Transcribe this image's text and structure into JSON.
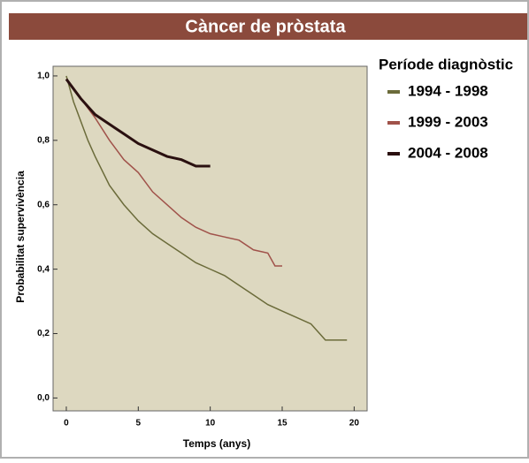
{
  "chart_data": {
    "type": "line",
    "title": "Càncer de pròstata",
    "x_label": "Temps (anys)",
    "y_label": "Probabilitat supervivència",
    "legend_title": "Període diagnòstic",
    "legend_position": "right",
    "xlim": [
      -0.92,
      20.9
    ],
    "ylim": [
      -0.04,
      1.03
    ],
    "xticks": [
      0,
      5,
      10,
      15,
      20
    ],
    "yticks": [
      {
        "value": 0,
        "label": "0,0"
      },
      {
        "value": 0.2,
        "label": "0,2"
      },
      {
        "value": 0.4,
        "label": "0,4"
      },
      {
        "value": 0.6,
        "label": "0,6"
      },
      {
        "value": 0.8,
        "label": "0,8"
      },
      {
        "value": 1,
        "label": "1,0"
      }
    ],
    "series": [
      {
        "name": "1994 - 1998",
        "color": "#6b6b3a",
        "x": [
          0,
          0.5,
          1,
          1.5,
          2,
          3,
          4,
          5,
          6,
          7,
          8,
          9,
          10,
          11,
          12,
          13,
          14,
          15,
          16,
          17,
          18,
          19.5
        ],
        "values": [
          1.0,
          0.92,
          0.86,
          0.8,
          0.75,
          0.66,
          0.6,
          0.55,
          0.51,
          0.48,
          0.45,
          0.42,
          0.4,
          0.38,
          0.35,
          0.32,
          0.29,
          0.27,
          0.25,
          0.23,
          0.18,
          0.18
        ]
      },
      {
        "name": "1999 - 2003",
        "color": "#a0524a",
        "x": [
          0,
          1,
          2,
          3,
          4,
          5,
          6,
          7,
          8,
          9,
          10,
          11,
          12,
          13,
          14,
          14.5,
          15
        ],
        "values": [
          0.99,
          0.93,
          0.87,
          0.8,
          0.74,
          0.7,
          0.64,
          0.6,
          0.56,
          0.53,
          0.51,
          0.5,
          0.49,
          0.46,
          0.45,
          0.41,
          0.41
        ]
      },
      {
        "name": "2004 - 2008",
        "color": "#2a1010",
        "x": [
          0,
          1,
          2,
          3,
          4,
          5,
          6,
          7,
          8,
          8.5,
          9,
          10
        ],
        "values": [
          0.99,
          0.93,
          0.88,
          0.85,
          0.82,
          0.79,
          0.77,
          0.75,
          0.74,
          0.73,
          0.72,
          0.72
        ]
      }
    ]
  }
}
